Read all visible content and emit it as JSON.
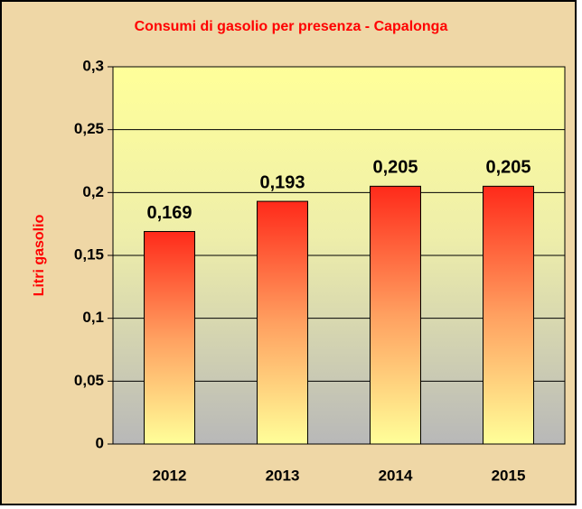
{
  "chart_data": {
    "type": "bar",
    "title": "Consumi di gasolio per presenza - Capalonga",
    "y_label": "Litri gasolio",
    "categories": [
      "2012",
      "2013",
      "2014",
      "2015"
    ],
    "values": [
      0.169,
      0.193,
      0.205,
      0.205
    ],
    "value_labels": [
      "0,169",
      "0,193",
      "0,205",
      "0,205"
    ],
    "ylim": [
      0,
      0.3
    ],
    "yticks": [
      0,
      {
        "value": 0.05,
        "label": "0,05"
      },
      {
        "value": 0.1,
        "label": "0,1"
      },
      {
        "value": 0.15,
        "label": "0,15"
      },
      {
        "value": 0.2,
        "label": "0,2"
      },
      {
        "value": 0.25,
        "label": "0,25"
      },
      {
        "value": 0.3,
        "label": "0,3"
      }
    ],
    "grid": true
  }
}
